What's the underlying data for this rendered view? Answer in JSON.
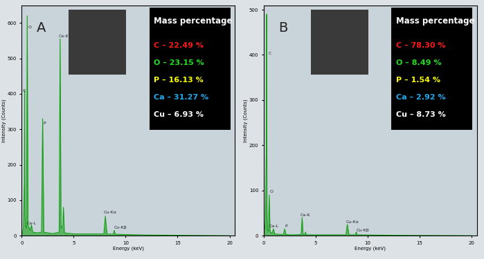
{
  "chart_data": [
    {
      "type": "line",
      "title": "A",
      "x_label": "Energy (keV)",
      "y_label": "Intensity (Counts)",
      "x": [
        0,
        0.15,
        0.25,
        0.277,
        0.31,
        0.34,
        0.37,
        0.45,
        0.525,
        0.6,
        0.8,
        0.93,
        1.05,
        1.5,
        1.9,
        2.01,
        2.12,
        2.5,
        3.0,
        3.6,
        3.69,
        3.78,
        3.95,
        4.01,
        4.1,
        5,
        7.9,
        8.04,
        8.2,
        8.8,
        8.9,
        9.0,
        12,
        20
      ],
      "series": [
        {
          "name": "A",
          "color": "#14a014",
          "values": [
            0,
            20,
            150,
            410,
            60,
            40,
            25,
            20,
            620,
            30,
            15,
            30,
            10,
            8,
            10,
            330,
            10,
            8,
            6,
            10,
            555,
            20,
            30,
            80,
            8,
            5,
            5,
            55,
            5,
            4,
            15,
            4,
            2,
            0
          ]
        }
      ],
      "xlim": [
        0,
        20.5
      ],
      "xticks": [
        0,
        5,
        10,
        15,
        20
      ],
      "ylim": [
        0,
        650
      ],
      "yticks": [
        0,
        100,
        200,
        300,
        400,
        500,
        600
      ],
      "annotations": [
        {
          "text": "C",
          "x": 0.1,
          "y": 405
        },
        {
          "text": "O",
          "x": 0.6,
          "y": 585
        },
        {
          "text": "Ca-L",
          "x": 0.5,
          "y": 32
        },
        {
          "text": "P",
          "x": 2.05,
          "y": 315
        },
        {
          "text": "Ca-K",
          "x": 3.55,
          "y": 560
        },
        {
          "text": "Cu-Kα",
          "x": 7.9,
          "y": 62
        },
        {
          "text": "Cu-Kβ",
          "x": 8.9,
          "y": 20
        }
      ],
      "composition": {
        "title": "Mass percentage",
        "items": [
          {
            "name": "C",
            "value": 22.49,
            "label": "C – 22.49 %",
            "color": "#ff1a1a"
          },
          {
            "name": "O",
            "value": 23.15,
            "label": "O – 23.15 %",
            "color": "#22dd22"
          },
          {
            "name": "P",
            "value": 16.13,
            "label": "P – 16.13 %",
            "color": "#ffff00"
          },
          {
            "name": "Ca",
            "value": 31.27,
            "label": "Ca – 31.27 %",
            "color": "#22aaee"
          },
          {
            "name": "Cu",
            "value": 6.93,
            "label": "Cu – 6.93 %",
            "color": "#ffffff"
          }
        ]
      }
    },
    {
      "type": "line",
      "title": "B",
      "x_label": "Energy (keV)",
      "y_label": "Intensity (Counts)",
      "x": [
        0,
        0.15,
        0.25,
        0.277,
        0.31,
        0.34,
        0.37,
        0.45,
        0.525,
        0.6,
        0.8,
        0.93,
        1.05,
        1.5,
        1.9,
        2.01,
        2.12,
        2.5,
        3.0,
        3.6,
        3.69,
        3.78,
        3.95,
        4.01,
        4.1,
        5,
        7.9,
        8.04,
        8.2,
        8.8,
        8.9,
        9.0,
        12,
        20
      ],
      "series": [
        {
          "name": "B",
          "color": "#14a014",
          "values": [
            0,
            30,
            200,
            490,
            60,
            20,
            12,
            10,
            90,
            10,
            5,
            15,
            4,
            3,
            3,
            15,
            3,
            2,
            2,
            3,
            40,
            3,
            3,
            8,
            2,
            2,
            2,
            25,
            2,
            2,
            8,
            2,
            1,
            0
          ]
        }
      ],
      "xlim": [
        0,
        20.5
      ],
      "xticks": [
        0,
        5,
        10,
        15,
        20
      ],
      "ylim": [
        0,
        510
      ],
      "yticks": [
        0,
        100,
        200,
        300,
        400,
        500
      ],
      "annotations": [
        {
          "text": "C",
          "x": 0.45,
          "y": 400
        },
        {
          "text": "O",
          "x": 0.55,
          "y": 95
        },
        {
          "text": "Ca-L",
          "x": 0.5,
          "y": 18
        },
        {
          "text": "P",
          "x": 2.0,
          "y": 18
        },
        {
          "text": "Ca-K",
          "x": 3.5,
          "y": 43
        },
        {
          "text": "Cu-Kα",
          "x": 7.9,
          "y": 28
        },
        {
          "text": "Cu-Kβ",
          "x": 8.9,
          "y": 10
        }
      ],
      "composition": {
        "title": "Mass percentage",
        "items": [
          {
            "name": "C",
            "value": 78.3,
            "label": "C – 78.30 %",
            "color": "#ff1a1a"
          },
          {
            "name": "O",
            "value": 8.49,
            "label": "O – 8.49 %",
            "color": "#22dd22"
          },
          {
            "name": "P",
            "value": 1.54,
            "label": "P – 1.54 %",
            "color": "#ffff00"
          },
          {
            "name": "Ca",
            "value": 2.92,
            "label": "Ca – 2.92 %",
            "color": "#22aaee"
          },
          {
            "name": "Cu",
            "value": 8.73,
            "label": "Cu – 8.73 %",
            "color": "#ffffff"
          }
        ]
      }
    }
  ]
}
